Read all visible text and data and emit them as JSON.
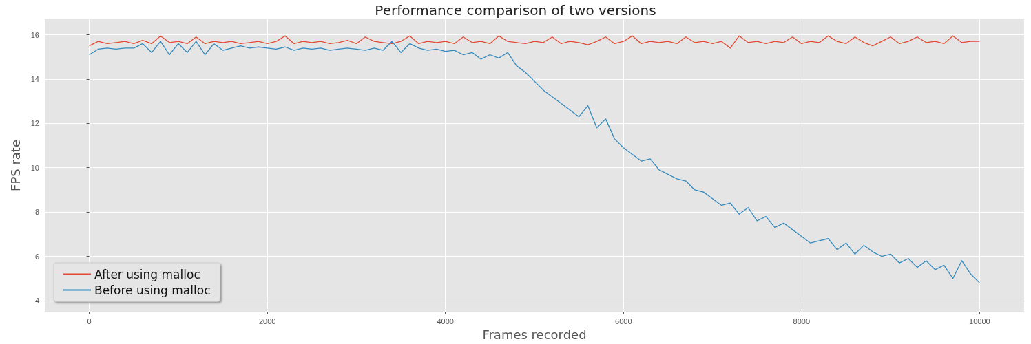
{
  "chart_data": {
    "type": "line",
    "title": "Performance comparison of two versions",
    "xlabel": "Frames recorded",
    "ylabel": "FPS rate",
    "xlim": [
      -500,
      10500
    ],
    "xticks": [
      0,
      2000,
      4000,
      6000,
      8000,
      10000
    ],
    "ylim": [
      3.5,
      16.7
    ],
    "yticks": [
      4,
      6,
      8,
      10,
      12,
      14,
      16
    ],
    "grid": true,
    "legend": "bottom left",
    "marker": "none",
    "line_style": "solid",
    "x": [
      0,
      100,
      200,
      300,
      400,
      500,
      600,
      700,
      800,
      900,
      1000,
      1100,
      1200,
      1300,
      1400,
      1500,
      1600,
      1700,
      1800,
      1900,
      2000,
      2100,
      2200,
      2300,
      2400,
      2500,
      2600,
      2700,
      2800,
      2900,
      3000,
      3100,
      3200,
      3300,
      3400,
      3500,
      3600,
      3700,
      3800,
      3900,
      4000,
      4100,
      4200,
      4300,
      4400,
      4500,
      4600,
      4700,
      4800,
      4900,
      5000,
      5100,
      5200,
      5300,
      5400,
      5500,
      5600,
      5700,
      5800,
      5900,
      6000,
      6100,
      6200,
      6300,
      6400,
      6500,
      6600,
      6700,
      6800,
      6900,
      7000,
      7100,
      7200,
      7300,
      7400,
      7500,
      7600,
      7700,
      7800,
      7900,
      8000,
      8100,
      8200,
      8300,
      8400,
      8500,
      8600,
      8700,
      8800,
      8900,
      9000,
      9100,
      9200,
      9300,
      9400,
      9500,
      9600,
      9700,
      9800,
      9900,
      10000
    ],
    "series": [
      {
        "name": "After using malloc",
        "color": "#e24a33",
        "values": [
          15.5,
          15.7,
          15.6,
          15.65,
          15.7,
          15.6,
          15.75,
          15.6,
          15.95,
          15.65,
          15.7,
          15.6,
          15.9,
          15.6,
          15.7,
          15.65,
          15.7,
          15.6,
          15.65,
          15.7,
          15.6,
          15.7,
          15.95,
          15.6,
          15.7,
          15.65,
          15.7,
          15.6,
          15.65,
          15.75,
          15.6,
          15.9,
          15.7,
          15.65,
          15.6,
          15.7,
          15.95,
          15.6,
          15.7,
          15.65,
          15.7,
          15.6,
          15.9,
          15.65,
          15.7,
          15.6,
          15.95,
          15.7,
          15.65,
          15.6,
          15.7,
          15.65,
          15.9,
          15.6,
          15.7,
          15.65,
          15.55,
          15.7,
          15.9,
          15.6,
          15.7,
          15.95,
          15.6,
          15.7,
          15.65,
          15.7,
          15.6,
          15.9,
          15.65,
          15.7,
          15.6,
          15.7,
          15.4,
          15.95,
          15.65,
          15.7,
          15.6,
          15.7,
          15.65,
          15.9,
          15.6,
          15.7,
          15.65,
          15.95,
          15.7,
          15.6,
          15.9,
          15.65,
          15.5,
          15.7,
          15.9,
          15.6,
          15.7,
          15.9,
          15.65,
          15.7,
          15.6,
          15.95,
          15.65,
          15.7,
          15.7
        ]
      },
      {
        "name": "Before using malloc",
        "color": "#348abd",
        "values": [
          15.1,
          15.35,
          15.4,
          15.35,
          15.4,
          15.4,
          15.6,
          15.2,
          15.7,
          15.1,
          15.6,
          15.2,
          15.7,
          15.1,
          15.6,
          15.3,
          15.4,
          15.5,
          15.4,
          15.45,
          15.4,
          15.35,
          15.45,
          15.3,
          15.4,
          15.35,
          15.4,
          15.3,
          15.35,
          15.4,
          15.35,
          15.3,
          15.4,
          15.3,
          15.7,
          15.2,
          15.6,
          15.4,
          15.3,
          15.35,
          15.25,
          15.3,
          15.1,
          15.2,
          14.9,
          15.1,
          14.95,
          15.2,
          14.6,
          14.3,
          13.9,
          13.5,
          13.2,
          12.9,
          12.6,
          12.3,
          12.8,
          11.8,
          12.2,
          11.3,
          10.9,
          10.6,
          10.3,
          10.4,
          9.9,
          9.7,
          9.5,
          9.4,
          9.0,
          8.9,
          8.6,
          8.3,
          8.4,
          7.9,
          8.2,
          7.6,
          7.8,
          7.3,
          7.5,
          7.2,
          6.9,
          6.6,
          6.7,
          6.8,
          6.3,
          6.6,
          6.1,
          6.5,
          6.2,
          6.0,
          6.1,
          5.7,
          5.9,
          5.5,
          5.8,
          5.4,
          5.6,
          5.0,
          5.8,
          5.2,
          4.8
        ]
      }
    ]
  }
}
